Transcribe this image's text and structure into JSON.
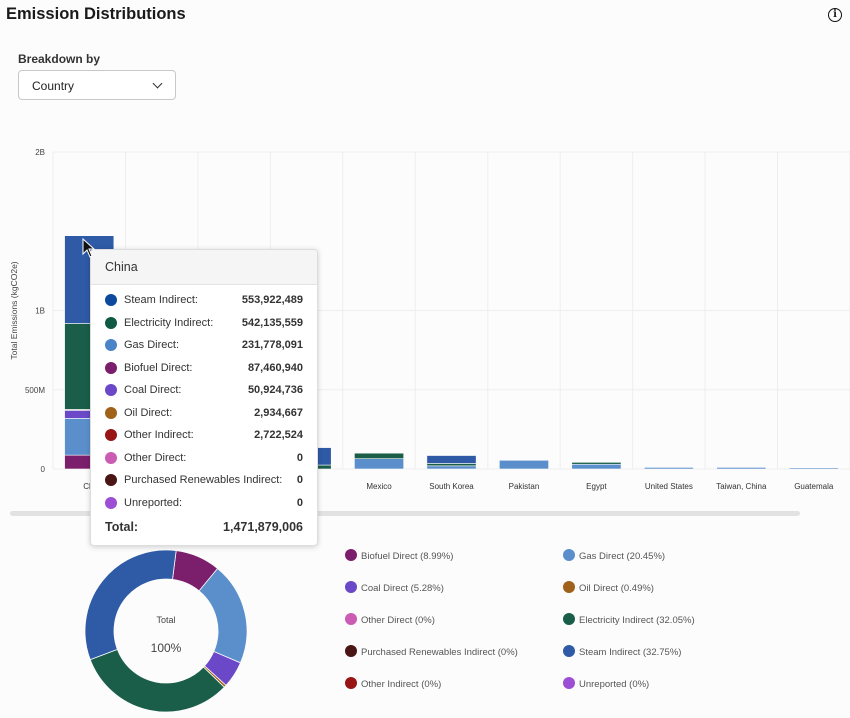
{
  "header": {
    "title": "Emission Distributions",
    "info_icon": "info-icon"
  },
  "breakdown": {
    "label": "Breakdown by",
    "selected": "Country"
  },
  "colors": {
    "Biofuel Direct": "#7b1f6c",
    "Gas Direct": "#5b8fcc",
    "Coal Direct": "#6a48c8",
    "Oil Direct": "#a0611a",
    "Other Direct": "#cc5bb4",
    "Electricity Indirect": "#1a5e4a",
    "Purchased Renewables Indirect": "#4a1515",
    "Steam Indirect": "#2e5aa6",
    "Other Indirect": "#991515",
    "Unreported": "#9c4fd4"
  },
  "chart_data": [
    {
      "type": "bar",
      "stacked": true,
      "ylabel": "Total Emissions (kgCO2e)",
      "ylim": [
        0,
        2000000000
      ],
      "yticks": [
        {
          "value": 0,
          "label": "0"
        },
        {
          "value": 500000000,
          "label": "500M"
        },
        {
          "value": 1000000000,
          "label": "1B"
        },
        {
          "value": 2000000000,
          "label": "2B"
        }
      ],
      "categories": [
        "China",
        "",
        "",
        "Bangladesh",
        "Mexico",
        "South Korea",
        "Pakistan",
        "Egypt",
        "United States",
        "Taiwan, China",
        "Guatemala"
      ],
      "category_labels": [
        "Chi",
        "",
        "",
        "esh",
        "Mexico",
        "South Korea",
        "Pakistan",
        "Egypt",
        "United States",
        "Taiwan, China",
        "Guatemala"
      ],
      "series": [
        {
          "name": "Biofuel Direct",
          "values": [
            87460940,
            0,
            0,
            0,
            0,
            0,
            0,
            0,
            0,
            0,
            0
          ]
        },
        {
          "name": "Gas Direct",
          "values": [
            231778091,
            0,
            0,
            0,
            65000000,
            20000000,
            55000000,
            30000000,
            10000000,
            10000000,
            4000000
          ]
        },
        {
          "name": "Coal Direct",
          "values": [
            50924736,
            0,
            0,
            0,
            0,
            0,
            0,
            0,
            0,
            0,
            0
          ]
        },
        {
          "name": "Oil Direct",
          "values": [
            2934667,
            0,
            0,
            0,
            0,
            0,
            0,
            0,
            0,
            0,
            0
          ]
        },
        {
          "name": "Other Direct",
          "values": [
            0,
            0,
            0,
            0,
            0,
            0,
            0,
            0,
            0,
            0,
            0
          ]
        },
        {
          "name": "Other Indirect",
          "values": [
            2722524,
            0,
            0,
            0,
            0,
            0,
            0,
            0,
            0,
            0,
            0
          ]
        },
        {
          "name": "Electricity Indirect",
          "values": [
            542135559,
            0,
            0,
            25000000,
            35000000,
            15000000,
            0,
            12000000,
            0,
            0,
            0
          ]
        },
        {
          "name": "Purchased Renewables Indirect",
          "values": [
            0,
            0,
            0,
            0,
            0,
            0,
            0,
            0,
            0,
            0,
            0
          ]
        },
        {
          "name": "Steam Indirect",
          "values": [
            553922489,
            0,
            0,
            110000000,
            0,
            50000000,
            0,
            0,
            0,
            0,
            0
          ]
        },
        {
          "name": "Unreported",
          "values": [
            0,
            0,
            0,
            0,
            0,
            0,
            0,
            0,
            0,
            0,
            0
          ]
        }
      ]
    },
    {
      "type": "pie",
      "donut": true,
      "center_label": "Total",
      "center_value": "100%",
      "slices": [
        {
          "name": "Biofuel Direct",
          "percent": 8.99,
          "label": "Biofuel Direct (8.99%)"
        },
        {
          "name": "Gas Direct",
          "percent": 20.45,
          "label": "Gas Direct (20.45%)"
        },
        {
          "name": "Coal Direct",
          "percent": 5.28,
          "label": "Coal Direct (5.28%)"
        },
        {
          "name": "Oil Direct",
          "percent": 0.49,
          "label": "Oil Direct (0.49%)"
        },
        {
          "name": "Other Direct",
          "percent": 0,
          "label": "Other Direct (0%)"
        },
        {
          "name": "Electricity Indirect",
          "percent": 32.05,
          "label": "Electricity Indirect (32.05%)"
        },
        {
          "name": "Purchased Renewables Indirect",
          "percent": 0,
          "label": "Purchased Renewables Indirect (0%)"
        },
        {
          "name": "Steam Indirect",
          "percent": 32.75,
          "label": "Steam Indirect (32.75%)"
        },
        {
          "name": "Other Indirect",
          "percent": 0,
          "label": "Other Indirect (0%)"
        },
        {
          "name": "Unreported",
          "percent": 0,
          "label": "Unreported (0%)"
        }
      ]
    }
  ],
  "tooltip": {
    "title": "China",
    "rows": [
      {
        "name": "Steam Indirect",
        "label": "Steam Indirect:",
        "value": "553,922,489",
        "color": "#0d4a9e"
      },
      {
        "name": "Electricity Indirect",
        "label": "Electricity Indirect:",
        "value": "542,135,559",
        "color": "#0f5a45"
      },
      {
        "name": "Gas Direct",
        "label": "Gas Direct:",
        "value": "231,778,091",
        "color": "#4a83c8"
      },
      {
        "name": "Biofuel Direct",
        "label": "Biofuel Direct:",
        "value": "87,460,940",
        "color": "#7b1f6c"
      },
      {
        "name": "Coal Direct",
        "label": "Coal Direct:",
        "value": "50,924,736",
        "color": "#6a48c8"
      },
      {
        "name": "Oil Direct",
        "label": "Oil Direct:",
        "value": "2,934,667",
        "color": "#a0611a"
      },
      {
        "name": "Other Indirect",
        "label": "Other Indirect:",
        "value": "2,722,524",
        "color": "#991515"
      },
      {
        "name": "Other Direct",
        "label": "Other Direct:",
        "value": "0",
        "color": "#cc5bb4"
      },
      {
        "name": "Purchased Renewables Indirect",
        "label": "Purchased Renewables Indirect:",
        "value": "0",
        "color": "#4a1515"
      },
      {
        "name": "Unreported",
        "label": "Unreported:",
        "value": "0",
        "color": "#9c4fd4"
      }
    ],
    "total_label": "Total:",
    "total_value": "1,471,879,006"
  },
  "legend": [
    {
      "name": "Biofuel Direct",
      "label": "Biofuel Direct (8.99%)"
    },
    {
      "name": "Gas Direct",
      "label": "Gas Direct (20.45%)"
    },
    {
      "name": "Coal Direct",
      "label": "Coal Direct (5.28%)"
    },
    {
      "name": "Oil Direct",
      "label": "Oil Direct (0.49%)"
    },
    {
      "name": "Other Direct",
      "label": "Other Direct (0%)"
    },
    {
      "name": "Electricity Indirect",
      "label": "Electricity Indirect (32.05%)"
    },
    {
      "name": "Purchased Renewables Indirect",
      "label": "Purchased Renewables Indirect (0%)"
    },
    {
      "name": "Steam Indirect",
      "label": "Steam Indirect (32.75%)"
    },
    {
      "name": "Other Indirect",
      "label": "Other Indirect (0%)"
    },
    {
      "name": "Unreported",
      "label": "Unreported (0%)"
    }
  ]
}
